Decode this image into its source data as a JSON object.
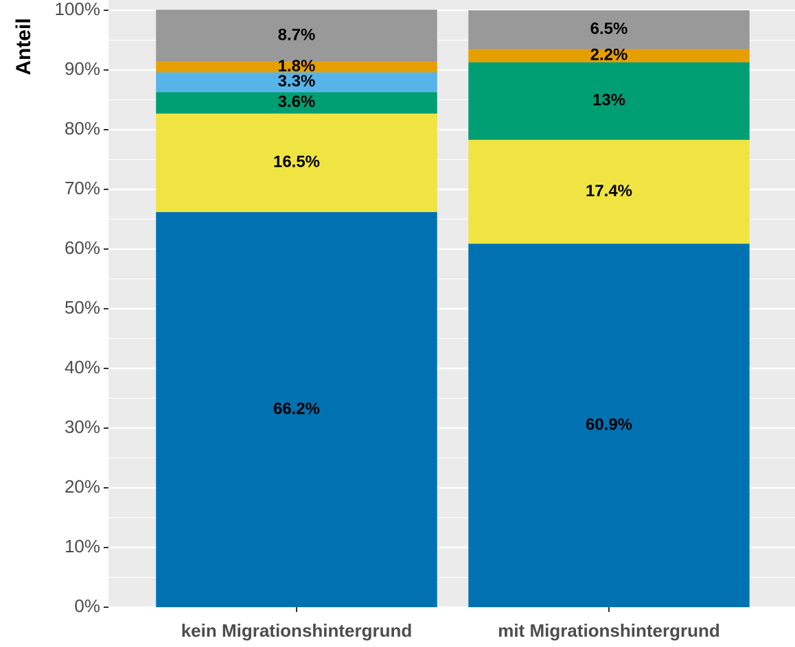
{
  "chart_data": {
    "type": "stacked_bar",
    "y_label": "Anteil",
    "categories": [
      "kein Migrationshintergrund",
      "mit Migrationshintergrund"
    ],
    "series": [
      {
        "color": "#0072b2",
        "values": [
          66.2,
          60.9
        ],
        "value_labels": [
          "66.2%",
          "60.9%"
        ]
      },
      {
        "color": "#f0e442",
        "values": [
          16.5,
          17.4
        ],
        "value_labels": [
          "16.5%",
          "17.4%"
        ]
      },
      {
        "color": "#009e73",
        "values": [
          3.6,
          13
        ],
        "value_labels": [
          "3.6%",
          "13%"
        ]
      },
      {
        "color": "#56b4e9",
        "values": [
          3.3,
          null
        ],
        "value_labels": [
          "3.3%",
          null
        ]
      },
      {
        "color": "#e69f00",
        "values": [
          1.8,
          2.2
        ],
        "value_labels": [
          "1.8%",
          "2.2%"
        ]
      },
      {
        "color": "#999999",
        "values": [
          8.7,
          6.5
        ],
        "value_labels": [
          "8.7%",
          "6.5%"
        ]
      }
    ],
    "ylim": [
      0,
      100
    ],
    "yticks": [
      {
        "value": 0,
        "label": "0%"
      },
      {
        "value": 10,
        "label": "10%"
      },
      {
        "value": 20,
        "label": "20%"
      },
      {
        "value": 30,
        "label": "30%"
      },
      {
        "value": 40,
        "label": "40%"
      },
      {
        "value": 50,
        "label": "50%"
      },
      {
        "value": 60,
        "label": "60%"
      },
      {
        "value": 70,
        "label": "70%"
      },
      {
        "value": 80,
        "label": "80%"
      },
      {
        "value": 90,
        "label": "90%"
      },
      {
        "value": 100,
        "label": "100%"
      }
    ],
    "grid": true
  }
}
